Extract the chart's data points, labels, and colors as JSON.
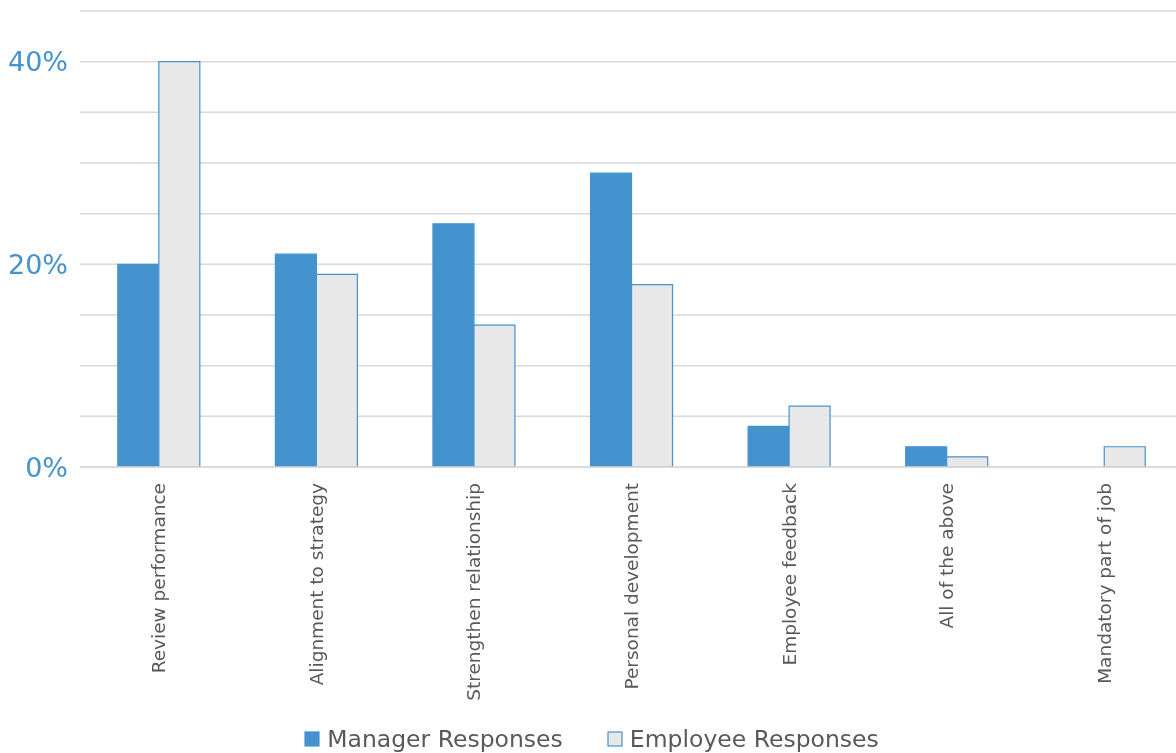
{
  "chart_data": {
    "type": "bar",
    "categories": [
      "Review performance",
      "Alignment to strategy",
      "Strengthen relationship",
      "Personal development",
      "Employee feedback",
      "All of the above",
      "Mandatory part of job"
    ],
    "series": [
      {
        "name": "Manager Responses",
        "color": "#4493cf",
        "values": [
          20,
          21,
          24,
          29,
          4,
          2,
          0
        ]
      },
      {
        "name": "Employee Responses",
        "color": "#e8e8e8",
        "values": [
          40,
          19,
          14,
          18,
          6,
          1,
          2
        ]
      }
    ],
    "ylim": [
      0,
      45
    ],
    "yticks": [
      {
        "value": 0,
        "label": "0%"
      },
      {
        "value": 5,
        "label": null
      },
      {
        "value": 10,
        "label": null
      },
      {
        "value": 15,
        "label": null
      },
      {
        "value": 20,
        "label": "20%"
      },
      {
        "value": 25,
        "label": null
      },
      {
        "value": 30,
        "label": null
      },
      {
        "value": 35,
        "label": null
      },
      {
        "value": 40,
        "label": "40%"
      },
      {
        "value": 45,
        "label": null
      }
    ],
    "grid": "y",
    "legend": "bottom"
  }
}
